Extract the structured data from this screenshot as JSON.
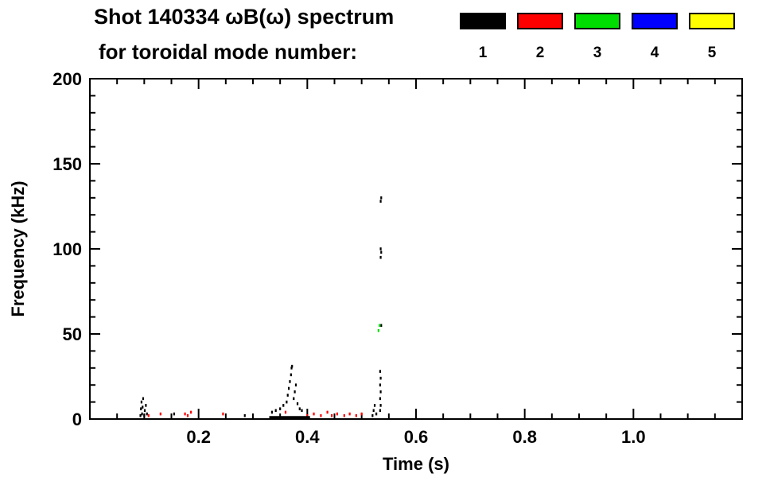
{
  "chart_data": {
    "type": "scatter",
    "title": "Shot 140334 ωB(ω) spectrum",
    "subtitle": "for toroidal mode number:",
    "xlabel": "Time (s)",
    "ylabel": "Frequency (kHz)",
    "xlim": [
      0.0,
      1.2
    ],
    "ylim": [
      0,
      200
    ],
    "xticks": [
      0.2,
      0.4,
      0.6,
      0.8,
      1.0
    ],
    "xtick_labels": [
      "0.2",
      "0.4",
      "0.6",
      "0.8",
      "1.0"
    ],
    "yticks": [
      0,
      50,
      100,
      150,
      200
    ],
    "ytick_labels": [
      "0",
      "50",
      "100",
      "150",
      "200"
    ],
    "x_minor_step": 0.05,
    "y_minor_step": 10,
    "grid": false,
    "legend_position": "top-right",
    "legend": [
      {
        "label": "1",
        "color": "#000000"
      },
      {
        "label": "2",
        "color": "#ff0000"
      },
      {
        "label": "3",
        "color": "#00dd00"
      },
      {
        "label": "4",
        "color": "#0000ff"
      },
      {
        "label": "5",
        "color": "#ffff00"
      }
    ],
    "series": [
      {
        "name": "n=1",
        "color": "#000000",
        "points": [
          [
            0.093,
            2
          ],
          [
            0.094,
            6
          ],
          [
            0.095,
            10
          ],
          [
            0.096,
            3
          ],
          [
            0.097,
            7
          ],
          [
            0.098,
            12
          ],
          [
            0.1,
            2
          ],
          [
            0.101,
            5
          ],
          [
            0.103,
            8
          ],
          [
            0.105,
            3
          ],
          [
            0.155,
            3
          ],
          [
            0.285,
            2
          ],
          [
            0.335,
            4
          ],
          [
            0.342,
            5
          ],
          [
            0.35,
            6
          ],
          [
            0.356,
            8
          ],
          [
            0.362,
            10
          ],
          [
            0.364,
            14
          ],
          [
            0.366,
            18
          ],
          [
            0.368,
            22
          ],
          [
            0.37,
            26
          ],
          [
            0.371,
            30
          ],
          [
            0.372,
            31
          ],
          [
            0.375,
            12
          ],
          [
            0.377,
            16
          ],
          [
            0.379,
            20
          ],
          [
            0.382,
            9
          ],
          [
            0.386,
            6
          ],
          [
            0.39,
            5
          ],
          [
            0.52,
            2
          ],
          [
            0.522,
            5
          ],
          [
            0.524,
            8
          ],
          [
            0.527,
            3
          ],
          [
            0.534,
            5
          ],
          [
            0.535,
            8
          ],
          [
            0.534,
            12
          ],
          [
            0.535,
            16
          ],
          [
            0.534,
            20
          ],
          [
            0.535,
            24
          ],
          [
            0.534,
            28
          ],
          [
            0.536,
            55
          ],
          [
            0.535,
            95
          ],
          [
            0.536,
            98
          ],
          [
            0.535,
            100
          ],
          [
            0.535,
            128
          ],
          [
            0.536,
            130
          ]
        ]
      },
      {
        "name": "n=2",
        "color": "#ff0000",
        "points": [
          [
            0.108,
            2
          ],
          [
            0.13,
            3
          ],
          [
            0.175,
            3
          ],
          [
            0.18,
            2
          ],
          [
            0.186,
            4
          ],
          [
            0.245,
            3
          ],
          [
            0.36,
            4
          ],
          [
            0.4,
            2
          ],
          [
            0.412,
            3
          ],
          [
            0.425,
            2
          ],
          [
            0.437,
            4
          ],
          [
            0.445,
            2
          ],
          [
            0.455,
            3
          ],
          [
            0.468,
            2
          ],
          [
            0.478,
            3
          ],
          [
            0.49,
            2
          ],
          [
            0.5,
            3
          ]
        ]
      },
      {
        "name": "n=3",
        "color": "#00dd00",
        "points": [
          [
            0.531,
            52
          ],
          [
            0.533,
            55
          ]
        ]
      },
      {
        "name": "n=4",
        "color": "#0000ff",
        "points": []
      },
      {
        "name": "n=5",
        "color": "#ffff00",
        "points": []
      }
    ],
    "segments": [
      {
        "series": 1,
        "t_start": 0.33,
        "t_end": 0.405,
        "f": 1
      }
    ]
  }
}
